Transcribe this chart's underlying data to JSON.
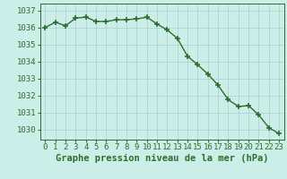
{
  "x": [
    0,
    1,
    2,
    3,
    4,
    5,
    6,
    7,
    8,
    9,
    10,
    11,
    12,
    13,
    14,
    15,
    16,
    17,
    18,
    19,
    20,
    21,
    22,
    23
  ],
  "y": [
    1036.0,
    1036.3,
    1036.1,
    1036.55,
    1036.6,
    1036.35,
    1036.35,
    1036.45,
    1036.45,
    1036.5,
    1036.6,
    1036.2,
    1035.85,
    1035.35,
    1034.3,
    1033.8,
    1033.25,
    1032.6,
    1031.75,
    1031.35,
    1031.4,
    1030.85,
    1030.1,
    1029.75
  ],
  "line_color": "#2d6e2d",
  "marker": "+",
  "marker_size": 5,
  "bg_color": "#cceee8",
  "grid_color": "#aacccc",
  "xlabel": "Graphe pression niveau de la mer (hPa)",
  "xlabel_fontsize": 7.5,
  "xtick_labels": [
    "0",
    "1",
    "2",
    "3",
    "4",
    "5",
    "6",
    "7",
    "8",
    "9",
    "10",
    "11",
    "12",
    "13",
    "14",
    "15",
    "16",
    "17",
    "18",
    "19",
    "20",
    "21",
    "22",
    "23"
  ],
  "ytick_values": [
    1030,
    1031,
    1032,
    1033,
    1034,
    1035,
    1036,
    1037
  ],
  "ylim": [
    1029.4,
    1037.4
  ],
  "xlim": [
    -0.5,
    23.5
  ],
  "tick_fontsize": 6.5,
  "line_width": 1.0
}
